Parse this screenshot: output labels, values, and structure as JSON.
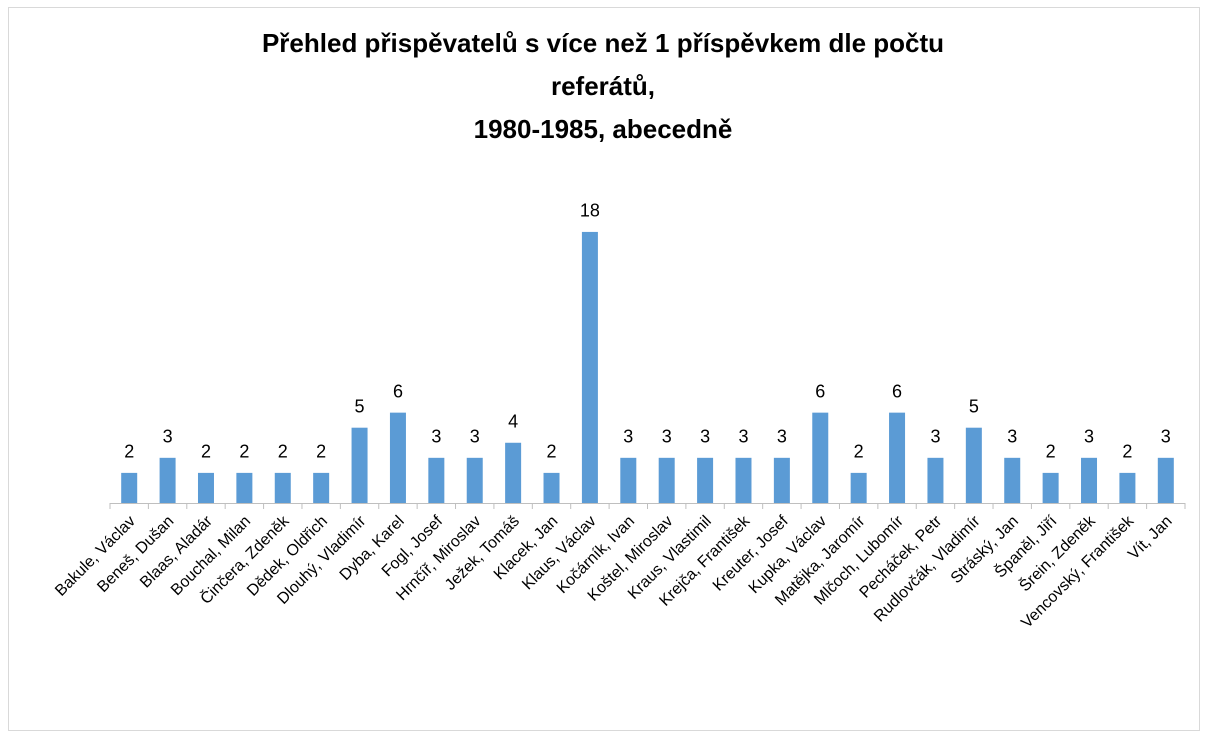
{
  "chart_data": {
    "type": "bar",
    "title": [
      "Přehled přispěvatelů s více než 1 příspěvkem dle počtu",
      "referátů,",
      "1980-1985, abecedně"
    ],
    "categories": [
      "Bakule, Václav",
      "Beneš, Dušan",
      "Blaas, Aladár",
      "Bouchal, Milan",
      "Činčera, Zdeněk",
      "Dědek, Oldřich",
      "Dlouhý, Vladimír",
      "Dyba, Karel",
      "Fogl, Josef",
      "Hrnčíř, Miroslav",
      "Ježek, Tomáš",
      "Klacek, Jan",
      "Klaus, Václav",
      "Kočárník, Ivan",
      "Koštel, Miroslav",
      "Kraus, Vlastimil",
      "Krejča, František",
      "Kreuter, Josef",
      "Kupka, Václav",
      "Matějka, Jaromír",
      "Mlčoch, Lubomír",
      "Pecháček, Petr",
      "Rudlovčák, Vladimír",
      "Stráský, Jan",
      "Španěl, Jiří",
      "Šrein, Zdeněk",
      "Vencovský, František",
      "Vít, Jan"
    ],
    "values": [
      2,
      3,
      2,
      2,
      2,
      2,
      5,
      6,
      3,
      3,
      4,
      2,
      18,
      3,
      3,
      3,
      3,
      3,
      6,
      2,
      6,
      3,
      5,
      3,
      2,
      3,
      2,
      3
    ],
    "color": "#5b9bd5"
  }
}
